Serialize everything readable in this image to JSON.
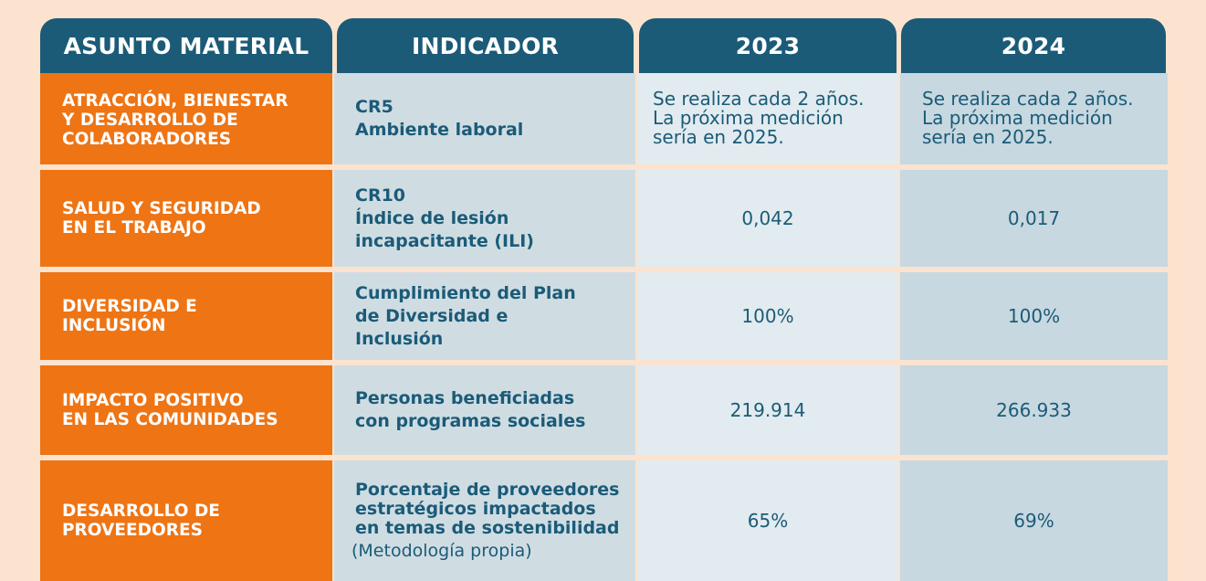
{
  "headers": {
    "asunto": "ASUNTO MATERIAL",
    "indicador": "INDICADOR",
    "year1": "2023",
    "year2": "2024"
  },
  "rows": [
    {
      "asunto": [
        "ATRACCIÓN, BIENESTAR",
        "Y DESARROLLO DE",
        "COLABORADORES"
      ],
      "indicador": [
        "CR5",
        "Ambiente laboral"
      ],
      "y2023": [
        "Se realiza cada 2 años.",
        "La próxima medición",
        "sería en 2025."
      ],
      "y2024": [
        "Se realiza cada 2 años.",
        "La próxima medición",
        "sería en 2025."
      ]
    },
    {
      "asunto": [
        "SALUD Y SEGURIDAD",
        "EN EL TRABAJO"
      ],
      "indicador": [
        "CR10",
        "Índice de lesión",
        "incapacitante (ILI)"
      ],
      "y2023": "0,042",
      "y2024": "0,017"
    },
    {
      "asunto": [
        "DIVERSIDAD E",
        "INCLUSIÓN"
      ],
      "indicador": [
        "Cumplimiento del Plan",
        "de Diversidad e",
        "Inclusión"
      ],
      "y2023": "100%",
      "y2024": "100%"
    },
    {
      "asunto": [
        "IMPACTO POSITIVO",
        "EN LAS COMUNIDADES"
      ],
      "indicador": [
        "Personas beneficiadas",
        "con programas sociales"
      ],
      "y2023": "219.914",
      "y2024": "266.933"
    },
    {
      "asunto": [
        "DESARROLLO DE",
        "PROVEEDORES"
      ],
      "indicador": [
        "Porcentaje de proveedores",
        "estratégicos impactados",
        "en temas de sostenibilidad"
      ],
      "indicador_note": "(Metodología propia)",
      "y2023": "65%",
      "y2024": "69%"
    }
  ]
}
